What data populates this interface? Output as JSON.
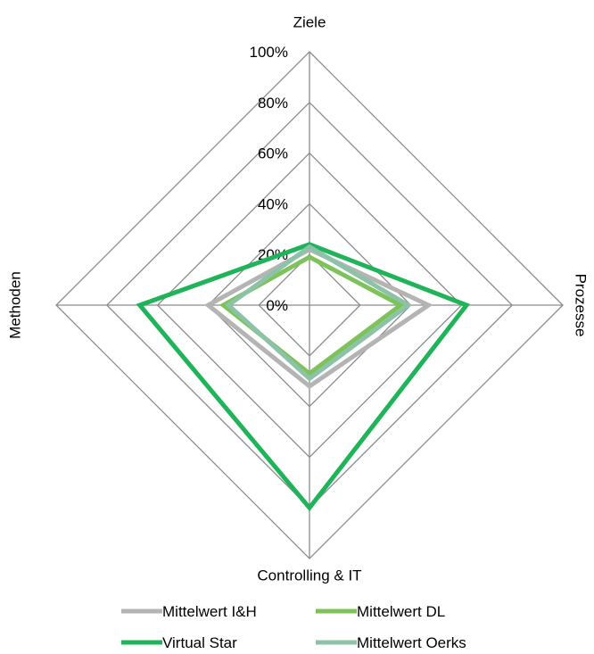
{
  "chart_data": {
    "type": "radar",
    "axes": [
      "Ziele",
      "Prozesse",
      "Controlling & IT",
      "Methoden"
    ],
    "range": [
      0,
      100
    ],
    "ticks": [
      "0%",
      "20%",
      "40%",
      "60%",
      "80%",
      "100%"
    ],
    "tick_values": [
      0,
      20,
      40,
      60,
      80,
      100
    ],
    "grid": true,
    "legend_position": "bottom",
    "series": [
      {
        "name": "Mittelwert I&H",
        "values": [
          22,
          47,
          32,
          40
        ],
        "color": "#b4b4b4"
      },
      {
        "name": "Mittelwert DL",
        "values": [
          19,
          36,
          27,
          34
        ],
        "color": "#7dc35a"
      },
      {
        "name": "Virtual Star",
        "values": [
          24,
          62,
          80,
          67
        ],
        "color": "#1fb45a"
      },
      {
        "name": "Mittelwert Oerks",
        "values": [
          23,
          39,
          29,
          32
        ],
        "color": "#8cc3a8"
      }
    ]
  }
}
